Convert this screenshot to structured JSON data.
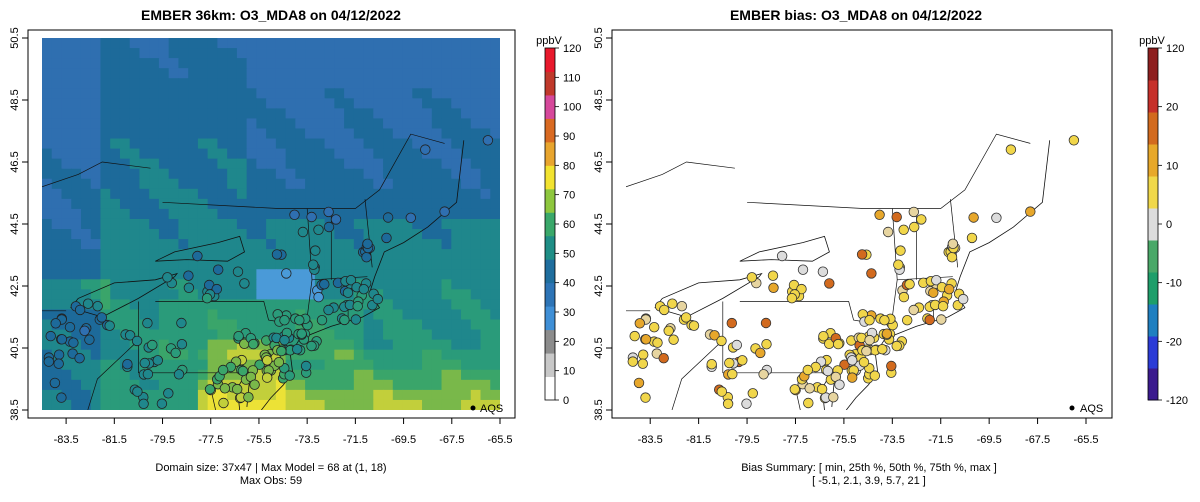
{
  "left_panel": {
    "title": "EMBER 36km: O3_MDA8 on 04/12/2022",
    "footer_line1": "Domain size: 37x47 | Max Model = 68 at (1, 18)",
    "footer_line2": "Max Obs: 59",
    "legend_unit": "ppbV",
    "legend_ticks": [
      "0",
      "10",
      "20",
      "30",
      "40",
      "50",
      "60",
      "70",
      "80",
      "90",
      "100",
      "110",
      "120"
    ],
    "point_label": "AQS"
  },
  "right_panel": {
    "title": "EMBER bias: O3_MDA8 on 04/12/2022",
    "footer_line1": "Bias Summary: [ min, 25th %, 50th %, 75th %, max ]",
    "footer_line2": "[ -5.1,   2.1,   3.9,   5.7,   21 ]",
    "legend_unit": "ppbV",
    "legend_ticks": [
      "-120",
      "-20",
      "-10",
      "0",
      "10",
      "20",
      "120"
    ],
    "point_label": "AQS"
  },
  "axes": {
    "x_ticks": [
      "-83.5",
      "-81.5",
      "-79.5",
      "-77.5",
      "-75.5",
      "-73.5",
      "-71.5",
      "-69.5",
      "-67.5",
      "-65.5"
    ],
    "y_ticks": [
      "38.5",
      "40.5",
      "42.5",
      "44.5",
      "46.5",
      "48.5",
      "50.5"
    ]
  },
  "colors": {
    "model_scale": [
      "#ffffff",
      "#c8c8c8",
      "#8c8c8c",
      "#3f8fd6",
      "#2d74b6",
      "#1f6e9e",
      "#1f8e86",
      "#3aa86a",
      "#8ec73e",
      "#f2e330",
      "#e8a52e",
      "#d96a22",
      "#d6489b",
      "#c0392b",
      "#e8192c"
    ],
    "bias_scale": [
      "#3b1a8e",
      "#2b3bd6",
      "#1f7fc0",
      "#1e9e6a",
      "#4aa868",
      "#dcdcdc",
      "#f0d84a",
      "#e7a82a",
      "#d26a1e",
      "#c6302a",
      "#8e1f1f"
    ]
  }
}
